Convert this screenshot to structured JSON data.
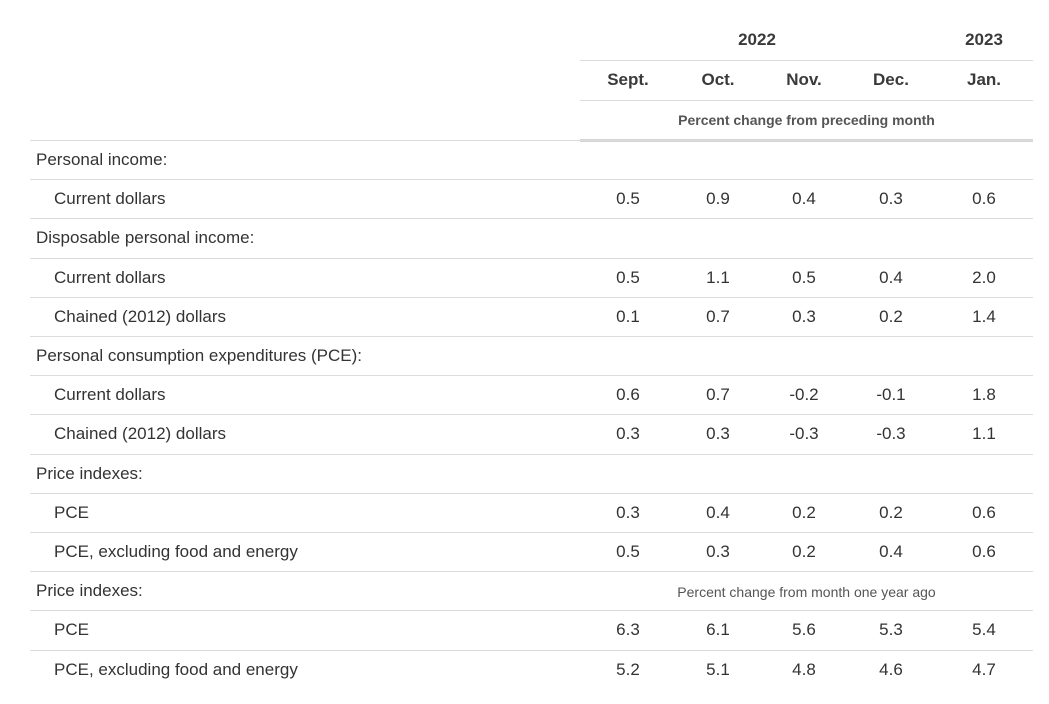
{
  "header": {
    "years": [
      {
        "label": "2022"
      },
      {
        "label": "2023"
      }
    ],
    "months": [
      "Sept.",
      "Oct.",
      "Nov.",
      "Dec.",
      "Jan."
    ],
    "unit_monthly": "Percent change from preceding month",
    "unit_yearly": "Percent change from month one year ago"
  },
  "rows": [
    {
      "label": "Personal income:",
      "values": []
    },
    {
      "label": "Current dollars",
      "values": [
        "0.5",
        "0.9",
        "0.4",
        "0.3",
        "0.6"
      ]
    },
    {
      "label": "Disposable personal income:",
      "values": []
    },
    {
      "label": "Current dollars",
      "values": [
        "0.5",
        "1.1",
        "0.5",
        "0.4",
        "2.0"
      ]
    },
    {
      "label": "Chained (2012) dollars",
      "values": [
        "0.1",
        "0.7",
        "0.3",
        "0.2",
        "1.4"
      ]
    },
    {
      "label": "Personal consumption expenditures (PCE):",
      "values": []
    },
    {
      "label": "Current dollars",
      "values": [
        "0.6",
        "0.7",
        "-0.2",
        "-0.1",
        "1.8"
      ]
    },
    {
      "label": "Chained (2012) dollars",
      "values": [
        "0.3",
        "0.3",
        "-0.3",
        "-0.3",
        "1.1"
      ]
    },
    {
      "label": "Price indexes:",
      "values": []
    },
    {
      "label": "PCE",
      "values": [
        "0.3",
        "0.4",
        "0.2",
        "0.2",
        "0.6"
      ]
    },
    {
      "label": "PCE, excluding food and energy",
      "values": [
        "0.5",
        "0.3",
        "0.2",
        "0.4",
        "0.6"
      ]
    },
    {
      "label": "Price indexes:",
      "values": []
    },
    {
      "label": "PCE",
      "values": [
        "6.3",
        "6.1",
        "5.6",
        "5.3",
        "5.4"
      ]
    },
    {
      "label": "PCE, excluding food and energy",
      "values": [
        "5.2",
        "5.1",
        "4.8",
        "4.6",
        "4.7"
      ]
    }
  ]
}
